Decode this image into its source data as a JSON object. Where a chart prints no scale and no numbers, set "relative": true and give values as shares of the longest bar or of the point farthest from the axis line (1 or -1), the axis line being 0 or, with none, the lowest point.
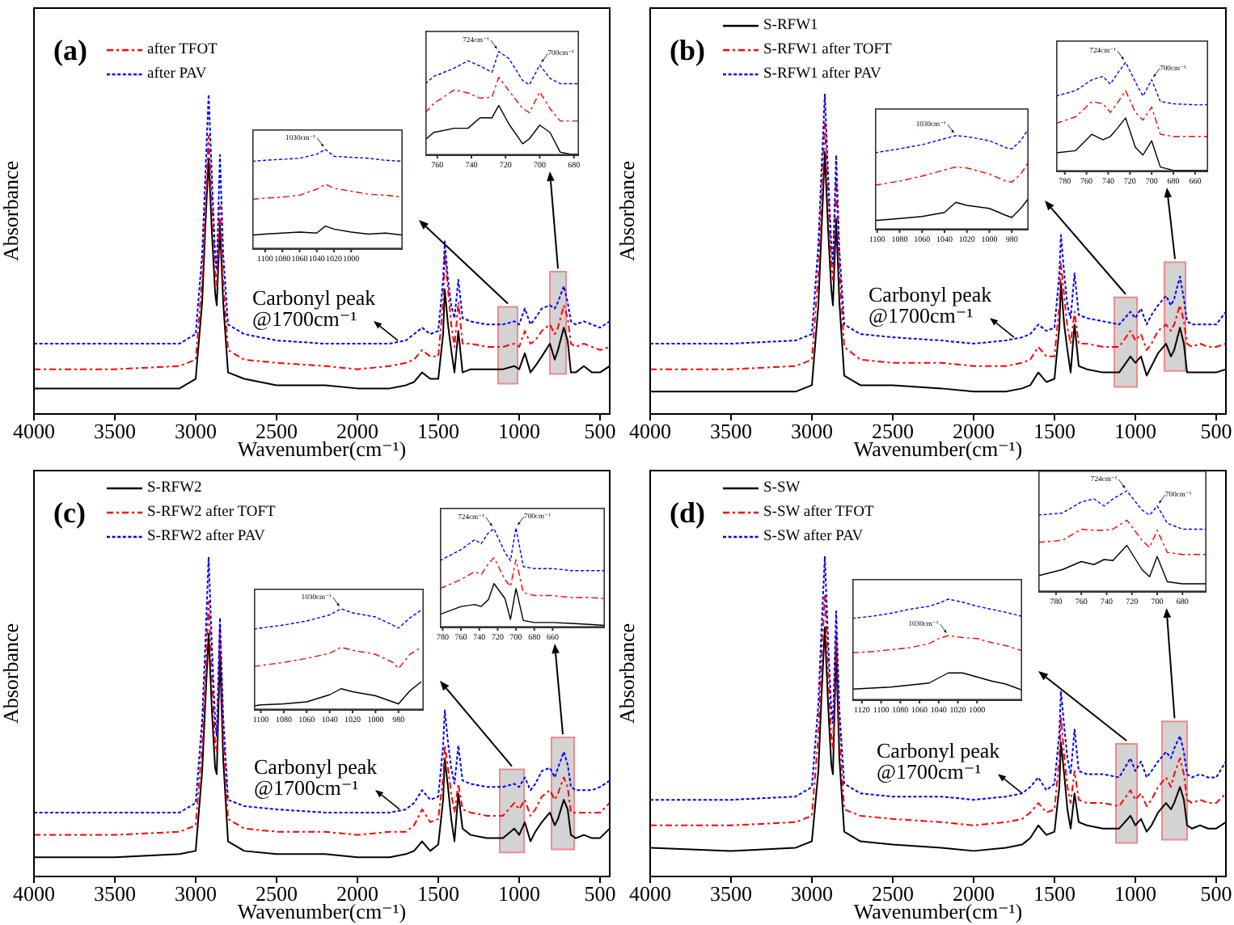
{
  "chart_data": [
    {
      "type": "line",
      "title": "(a)",
      "xlabel": "Wavenumber(cm⁻¹)",
      "ylabel": "Absorbance",
      "relative": true,
      "legend": "top left",
      "x": [
        4000,
        3500,
        3100,
        3000,
        2960,
        2940,
        2920,
        2900,
        2880,
        2870,
        2850,
        2830,
        2800,
        2700,
        2500,
        2200,
        2000,
        1800,
        1700,
        1650,
        1600,
        1550,
        1500,
        1470,
        1460,
        1440,
        1420,
        1400,
        1376,
        1350,
        1300,
        1200,
        1100,
        1030,
        1000,
        965,
        930,
        900,
        860,
        810,
        780,
        760,
        724,
        700,
        680,
        650,
        600,
        550,
        500,
        440
      ],
      "xlim": [
        4000,
        440
      ],
      "xticks": [
        4000,
        3500,
        3000,
        2500,
        2000,
        1500,
        1000,
        500
      ],
      "series": [
        {
          "color": "#000000",
          "line_style": "solid",
          "values": [
            0.08,
            0.08,
            0.08,
            0.11,
            0.35,
            0.59,
            0.8,
            0.57,
            0.38,
            0.34,
            0.59,
            0.35,
            0.13,
            0.11,
            0.09,
            0.09,
            0.08,
            0.08,
            0.09,
            0.1,
            0.13,
            0.11,
            0.11,
            0.25,
            0.39,
            0.28,
            0.2,
            0.13,
            0.26,
            0.13,
            0.14,
            0.14,
            0.14,
            0.15,
            0.14,
            0.19,
            0.13,
            0.15,
            0.18,
            0.22,
            0.17,
            0.2,
            0.27,
            0.23,
            0.13,
            0.13,
            0.15,
            0.13,
            0.13,
            0.15
          ]
        },
        {
          "name": "after TFOT",
          "color": "#ff0000",
          "line_style": "dashed",
          "values": [
            0.14,
            0.14,
            0.15,
            0.17,
            0.42,
            0.65,
            0.87,
            0.65,
            0.45,
            0.4,
            0.65,
            0.42,
            0.2,
            0.17,
            0.16,
            0.15,
            0.14,
            0.15,
            0.16,
            0.17,
            0.2,
            0.18,
            0.18,
            0.35,
            0.5,
            0.39,
            0.28,
            0.21,
            0.35,
            0.22,
            0.22,
            0.21,
            0.21,
            0.22,
            0.21,
            0.26,
            0.22,
            0.23,
            0.26,
            0.28,
            0.25,
            0.27,
            0.34,
            0.3,
            0.22,
            0.21,
            0.22,
            0.21,
            0.2,
            0.21
          ]
        },
        {
          "name": "after PAV",
          "color": "#0000ff",
          "line_style": "dotted",
          "values": [
            0.22,
            0.22,
            0.22,
            0.25,
            0.5,
            0.75,
            1,
            0.74,
            0.5,
            0.45,
            0.81,
            0.5,
            0.28,
            0.25,
            0.23,
            0.22,
            0.22,
            0.22,
            0.23,
            0.25,
            0.27,
            0.25,
            0.26,
            0.42,
            0.54,
            0.42,
            0.34,
            0.3,
            0.42,
            0.3,
            0.29,
            0.28,
            0.28,
            0.29,
            0.28,
            0.33,
            0.28,
            0.3,
            0.33,
            0.34,
            0.33,
            0.35,
            0.4,
            0.35,
            0.29,
            0.28,
            0.29,
            0.28,
            0.27,
            0.29
          ]
        }
      ],
      "bands": [
        {
          "axis": "x",
          "from": 1130,
          "to": 1010,
          "color": "#c8c8c8"
        },
        {
          "axis": "x",
          "from": 810,
          "to": 710,
          "color": "#c8c8c8"
        }
      ],
      "annotations": [
        {
          "text": "Carbonyl peak\n@1700cm⁻¹",
          "x": 1750,
          "y": 0.23
        }
      ]
    },
    {
      "type": "line",
      "relative": true,
      "x": [
        1115,
        1100,
        1080,
        1060,
        1040,
        1030,
        1020,
        1000,
        980,
        960,
        940
      ],
      "xlim": [
        1115,
        940
      ],
      "xticks": [
        1100,
        1080,
        1060,
        1040,
        1020,
        1000
      ],
      "series": [
        {
          "color": "#000000",
          "line_style": "solid",
          "values": [
            0.14,
            0.15,
            0.16,
            0.17,
            0.16,
            0.23,
            0.2,
            0.17,
            0.15,
            0.16,
            0.14
          ]
        },
        {
          "color": "#ff0000",
          "line_style": "dashed",
          "values": [
            0.5,
            0.51,
            0.52,
            0.54,
            0.6,
            0.65,
            0.61,
            0.58,
            0.55,
            0.54,
            0.52
          ]
        },
        {
          "color": "#0000ff",
          "line_style": "dotted",
          "values": [
            0.88,
            0.89,
            0.9,
            0.91,
            0.95,
            1,
            0.93,
            0.92,
            0.91,
            0.89,
            0.88
          ]
        }
      ],
      "annotations": [
        {
          "text": "1030cm⁻¹",
          "x": 1030,
          "y": 1
        }
      ]
    },
    {
      "type": "line",
      "relative": true,
      "x": [
        767,
        762,
        750,
        742,
        735,
        728,
        724,
        718,
        710,
        706,
        700,
        694,
        688,
        682,
        677
      ],
      "xlim": [
        767,
        677
      ],
      "xticks": [
        760,
        740,
        720,
        700,
        680
      ],
      "series": [
        {
          "color": "#000000",
          "line_style": "solid",
          "values": [
            0.15,
            0.22,
            0.26,
            0.26,
            0.36,
            0.36,
            0.48,
            0.3,
            0.11,
            0.16,
            0.29,
            0.22,
            0.03,
            0.01,
            0.01
          ]
        },
        {
          "color": "#ff0000",
          "line_style": "dashed",
          "values": [
            0.41,
            0.5,
            0.63,
            0.6,
            0.55,
            0.56,
            0.75,
            0.62,
            0.45,
            0.41,
            0.61,
            0.45,
            0.33,
            0.33,
            0.33
          ]
        },
        {
          "color": "#0000ff",
          "line_style": "dotted",
          "values": [
            0.69,
            0.76,
            0.84,
            0.91,
            0.86,
            0.8,
            1,
            0.93,
            0.72,
            0.68,
            0.87,
            0.74,
            0.69,
            0.69,
            0.69
          ]
        }
      ],
      "annotations": [
        {
          "text": "724cm⁻¹",
          "x": 724,
          "y": 1
        },
        {
          "text": "700cm⁻¹",
          "x": 700,
          "y": 0.87
        }
      ]
    },
    {
      "type": "line",
      "title": "(b)",
      "xlabel": "Wavenumber(cm⁻¹)",
      "ylabel": "Absorbance",
      "relative": true,
      "legend": "top left",
      "x": [
        4000,
        3500,
        3100,
        3000,
        2960,
        2940,
        2920,
        2900,
        2880,
        2870,
        2850,
        2830,
        2800,
        2700,
        2500,
        2200,
        2000,
        1800,
        1700,
        1650,
        1600,
        1550,
        1500,
        1470,
        1460,
        1440,
        1420,
        1400,
        1376,
        1350,
        1300,
        1200,
        1100,
        1030,
        1000,
        965,
        930,
        900,
        860,
        810,
        780,
        760,
        724,
        700,
        680,
        650,
        600,
        550,
        500,
        440
      ],
      "xlim": [
        4000,
        440
      ],
      "xticks": [
        4000,
        3500,
        3000,
        2500,
        2000,
        1500,
        1000,
        500
      ],
      "series": [
        {
          "name": "S-RFW1",
          "color": "#000000",
          "line_style": "solid",
          "values": [
            0.07,
            0.07,
            0.07,
            0.09,
            0.34,
            0.58,
            0.82,
            0.58,
            0.39,
            0.34,
            0.61,
            0.35,
            0.12,
            0.09,
            0.09,
            0.08,
            0.07,
            0.07,
            0.08,
            0.09,
            0.13,
            0.1,
            0.11,
            0.27,
            0.41,
            0.28,
            0.2,
            0.13,
            0.28,
            0.15,
            0.14,
            0.13,
            0.13,
            0.18,
            0.16,
            0.18,
            0.12,
            0.15,
            0.19,
            0.22,
            0.18,
            0.2,
            0.27,
            0.22,
            0.13,
            0.13,
            0.13,
            0.13,
            0.13,
            0.14
          ]
        },
        {
          "name": "S-RFW1 after TOFT",
          "color": "#ff0000",
          "line_style": "dashed",
          "values": [
            0.14,
            0.14,
            0.15,
            0.17,
            0.44,
            0.68,
            0.91,
            0.68,
            0.47,
            0.42,
            0.73,
            0.45,
            0.21,
            0.17,
            0.16,
            0.16,
            0.15,
            0.15,
            0.16,
            0.17,
            0.21,
            0.18,
            0.18,
            0.34,
            0.47,
            0.37,
            0.27,
            0.22,
            0.32,
            0.22,
            0.22,
            0.21,
            0.21,
            0.26,
            0.23,
            0.25,
            0.2,
            0.22,
            0.26,
            0.28,
            0.26,
            0.28,
            0.34,
            0.29,
            0.22,
            0.21,
            0.22,
            0.21,
            0.21,
            0.22
          ]
        },
        {
          "name": "S-RFW1 after PAV",
          "color": "#0000ff",
          "line_style": "dotted",
          "values": [
            0.22,
            0.22,
            0.23,
            0.25,
            0.53,
            0.77,
            1,
            0.75,
            0.53,
            0.47,
            0.81,
            0.51,
            0.28,
            0.25,
            0.24,
            0.23,
            0.22,
            0.23,
            0.24,
            0.25,
            0.28,
            0.26,
            0.27,
            0.44,
            0.56,
            0.44,
            0.34,
            0.3,
            0.44,
            0.31,
            0.3,
            0.29,
            0.28,
            0.32,
            0.3,
            0.33,
            0.28,
            0.31,
            0.34,
            0.37,
            0.34,
            0.36,
            0.43,
            0.36,
            0.29,
            0.28,
            0.28,
            0.28,
            0.28,
            0.32
          ]
        }
      ],
      "bands": [
        {
          "axis": "x",
          "from": 1130,
          "to": 990,
          "color": "#c8c8c8"
        },
        {
          "axis": "x",
          "from": 820,
          "to": 690,
          "color": "#c8c8c8"
        }
      ],
      "annotations": [
        {
          "text": "Carbonyl peak\n@1700cm⁻¹",
          "x": 1750,
          "y": 0.24
        }
      ]
    },
    {
      "type": "line",
      "relative": true,
      "x": [
        1102,
        1080,
        1060,
        1040,
        1030,
        1020,
        1000,
        985,
        980,
        972,
        965
      ],
      "xlim": [
        1102,
        965
      ],
      "xticks": [
        1100,
        1080,
        1060,
        1040,
        1020,
        1000,
        980
      ],
      "series": [
        {
          "color": "#000000",
          "line_style": "solid",
          "values": [
            0.09,
            0.11,
            0.13,
            0.17,
            0.27,
            0.24,
            0.21,
            0.14,
            0.12,
            0.21,
            0.31
          ]
        },
        {
          "color": "#ff0000",
          "line_style": "dashed",
          "values": [
            0.44,
            0.48,
            0.53,
            0.59,
            0.62,
            0.61,
            0.55,
            0.48,
            0.47,
            0.55,
            0.67
          ]
        },
        {
          "color": "#0000ff",
          "line_style": "dotted",
          "values": [
            0.76,
            0.8,
            0.84,
            0.9,
            0.93,
            0.92,
            0.88,
            0.81,
            0.8,
            0.88,
            1
          ]
        }
      ],
      "annotations": [
        {
          "text": "1030cm⁻¹",
          "x": 1030,
          "y": 0.93
        }
      ]
    },
    {
      "type": "line",
      "relative": true,
      "x": [
        788,
        770,
        755,
        745,
        738,
        732,
        724,
        715,
        708,
        700,
        692,
        680,
        660,
        648
      ],
      "xlim": [
        788,
        648
      ],
      "xticks": [
        780,
        760,
        740,
        720,
        700,
        680,
        660
      ],
      "series": [
        {
          "color": "#000000",
          "line_style": "solid",
          "values": [
            0.17,
            0.19,
            0.34,
            0.29,
            0.32,
            0.39,
            0.49,
            0.22,
            0.15,
            0.28,
            0.04,
            0.01,
            0.01,
            0.01
          ]
        },
        {
          "color": "#ff0000",
          "line_style": "dashed",
          "values": [
            0.44,
            0.5,
            0.64,
            0.62,
            0.54,
            0.62,
            0.74,
            0.54,
            0.47,
            0.59,
            0.34,
            0.32,
            0.32,
            0.32
          ]
        },
        {
          "color": "#0000ff",
          "line_style": "dotted",
          "values": [
            0.69,
            0.74,
            0.84,
            0.87,
            0.8,
            0.89,
            1,
            0.82,
            0.69,
            0.84,
            0.64,
            0.62,
            0.61,
            0.61
          ]
        }
      ],
      "annotations": [
        {
          "text": "724cm⁻¹",
          "x": 724,
          "y": 1
        },
        {
          "text": "700cm⁻¹",
          "x": 700,
          "y": 0.84
        }
      ]
    },
    {
      "type": "line",
      "title": "(c)",
      "xlabel": "Wavenumber(cm⁻¹)",
      "ylabel": "Absorbance",
      "relative": true,
      "legend": "top left",
      "x": [
        4000,
        3500,
        3100,
        3000,
        2960,
        2940,
        2920,
        2900,
        2880,
        2870,
        2850,
        2830,
        2800,
        2700,
        2500,
        2200,
        2000,
        1800,
        1700,
        1650,
        1600,
        1550,
        1500,
        1470,
        1460,
        1440,
        1420,
        1400,
        1376,
        1350,
        1300,
        1200,
        1100,
        1030,
        1000,
        965,
        930,
        900,
        860,
        810,
        780,
        760,
        724,
        700,
        680,
        650,
        600,
        550,
        500,
        440
      ],
      "xlim": [
        4000,
        440
      ],
      "xticks": [
        4000,
        3500,
        3000,
        2500,
        2000,
        1500,
        1000,
        500
      ],
      "series": [
        {
          "name": "S-RFW2",
          "color": "#000000",
          "line_style": "solid",
          "values": [
            0.06,
            0.06,
            0.07,
            0.08,
            0.33,
            0.55,
            0.76,
            0.52,
            0.34,
            0.32,
            0.7,
            0.37,
            0.11,
            0.08,
            0.07,
            0.07,
            0.06,
            0.06,
            0.07,
            0.08,
            0.11,
            0.08,
            0.1,
            0.24,
            0.37,
            0.28,
            0.18,
            0.11,
            0.26,
            0.15,
            0.13,
            0.12,
            0.12,
            0.15,
            0.13,
            0.17,
            0.11,
            0.14,
            0.17,
            0.2,
            0.16,
            0.18,
            0.24,
            0.21,
            0.13,
            0.12,
            0.13,
            0.12,
            0.12,
            0.15
          ]
        },
        {
          "name": "S-RFW2 after TOFT",
          "color": "#ff0000",
          "line_style": "dashed",
          "values": [
            0.13,
            0.13,
            0.14,
            0.16,
            0.41,
            0.63,
            0.86,
            0.62,
            0.42,
            0.39,
            0.78,
            0.44,
            0.18,
            0.15,
            0.14,
            0.14,
            0.13,
            0.14,
            0.14,
            0.16,
            0.21,
            0.17,
            0.18,
            0.31,
            0.41,
            0.34,
            0.26,
            0.2,
            0.29,
            0.21,
            0.2,
            0.19,
            0.19,
            0.23,
            0.21,
            0.24,
            0.19,
            0.21,
            0.25,
            0.27,
            0.24,
            0.26,
            0.31,
            0.28,
            0.2,
            0.2,
            0.2,
            0.2,
            0.2,
            0.23
          ]
        },
        {
          "name": "S-RFW2 after PAV",
          "color": "#0000ff",
          "line_style": "dotted",
          "values": [
            0.2,
            0.2,
            0.2,
            0.23,
            0.49,
            0.73,
            1,
            0.72,
            0.49,
            0.44,
            0.81,
            0.5,
            0.24,
            0.22,
            0.21,
            0.2,
            0.2,
            0.2,
            0.21,
            0.23,
            0.27,
            0.24,
            0.25,
            0.41,
            0.52,
            0.42,
            0.34,
            0.29,
            0.41,
            0.3,
            0.29,
            0.28,
            0.28,
            0.29,
            0.28,
            0.31,
            0.27,
            0.29,
            0.33,
            0.34,
            0.31,
            0.34,
            0.39,
            0.35,
            0.28,
            0.27,
            0.27,
            0.27,
            0.28,
            0.3
          ]
        }
      ],
      "bands": [
        {
          "axis": "x",
          "from": 1120,
          "to": 970,
          "color": "#c8c8c8"
        },
        {
          "axis": "x",
          "from": 800,
          "to": 660,
          "color": "#c8c8c8"
        }
      ],
      "annotations": [
        {
          "text": "Carbonyl peak\n@1700cm⁻¹",
          "x": 1740,
          "y": 0.21
        }
      ]
    },
    {
      "type": "line",
      "relative": true,
      "x": [
        1106,
        1100,
        1080,
        1060,
        1040,
        1030,
        1020,
        1000,
        985,
        980,
        970,
        960
      ],
      "xlim": [
        1106,
        958
      ],
      "xticks": [
        1100,
        1080,
        1060,
        1040,
        1020,
        1000,
        980
      ],
      "series": [
        {
          "color": "#000000",
          "line_style": "solid",
          "values": [
            0.04,
            0.05,
            0.06,
            0.08,
            0.15,
            0.21,
            0.18,
            0.14,
            0.08,
            0.06,
            0.19,
            0.28
          ]
        },
        {
          "color": "#ff0000",
          "line_style": "dashed",
          "values": [
            0.43,
            0.44,
            0.47,
            0.51,
            0.56,
            0.62,
            0.59,
            0.55,
            0.47,
            0.41,
            0.55,
            0.62
          ]
        },
        {
          "color": "#0000ff",
          "line_style": "dotted",
          "values": [
            0.8,
            0.81,
            0.84,
            0.88,
            0.94,
            1,
            0.96,
            0.92,
            0.84,
            0.81,
            0.91,
            0.99
          ]
        }
      ],
      "annotations": [
        {
          "text": "1030cm⁻¹",
          "x": 1030,
          "y": 1
        }
      ]
    },
    {
      "type": "line",
      "relative": true,
      "x": [
        783,
        760,
        745,
        738,
        730,
        724,
        712,
        706,
        700,
        692,
        680,
        660,
        640,
        620,
        603
      ],
      "xlim": [
        783,
        603
      ],
      "xticks": [
        780,
        760,
        740,
        720,
        700,
        680,
        660
      ],
      "series": [
        {
          "color": "#000000",
          "line_style": "solid",
          "values": [
            0.13,
            0.21,
            0.23,
            0.21,
            0.28,
            0.44,
            0.29,
            0.08,
            0.39,
            0.07,
            0.05,
            0.05,
            0.04,
            0.03,
            0.02
          ]
        },
        {
          "color": "#ff0000",
          "line_style": "dashed",
          "values": [
            0.39,
            0.48,
            0.56,
            0.53,
            0.64,
            0.7,
            0.48,
            0.41,
            0.68,
            0.35,
            0.32,
            0.32,
            0.3,
            0.3,
            0.29
          ]
        },
        {
          "color": "#0000ff",
          "line_style": "dotted",
          "values": [
            0.67,
            0.78,
            0.88,
            0.84,
            0.95,
            0.99,
            0.75,
            0.67,
            1,
            0.61,
            0.59,
            0.59,
            0.57,
            0.57,
            0.57
          ]
        }
      ],
      "annotations": [
        {
          "text": "724cm⁻¹",
          "x": 724,
          "y": 0.99
        },
        {
          "text": "700cm⁻¹",
          "x": 700,
          "y": 1
        }
      ]
    },
    {
      "type": "line",
      "title": "(d)",
      "xlabel": "Wavenumber(cm⁻¹)",
      "ylabel": "Absorbance",
      "relative": true,
      "legend": "top left",
      "x": [
        4000,
        3500,
        3100,
        3000,
        2960,
        2940,
        2920,
        2900,
        2880,
        2870,
        2850,
        2830,
        2800,
        2700,
        2500,
        2200,
        2000,
        1800,
        1700,
        1650,
        1600,
        1550,
        1500,
        1470,
        1460,
        1440,
        1420,
        1400,
        1376,
        1350,
        1300,
        1200,
        1100,
        1030,
        1000,
        965,
        930,
        900,
        860,
        810,
        780,
        760,
        724,
        700,
        680,
        650,
        600,
        550,
        500,
        440
      ],
      "xlim": [
        4000,
        440
      ],
      "xticks": [
        4000,
        3500,
        3000,
        2500,
        2000,
        1500,
        1000,
        500
      ],
      "series": [
        {
          "name": "S-SW",
          "color": "#000000",
          "line_style": "solid",
          "values": [
            0.09,
            0.08,
            0.09,
            0.11,
            0.33,
            0.57,
            0.78,
            0.54,
            0.35,
            0.32,
            0.71,
            0.37,
            0.14,
            0.11,
            0.1,
            0.09,
            0.08,
            0.09,
            0.1,
            0.12,
            0.16,
            0.13,
            0.14,
            0.28,
            0.42,
            0.32,
            0.21,
            0.15,
            0.26,
            0.17,
            0.16,
            0.15,
            0.15,
            0.19,
            0.16,
            0.18,
            0.14,
            0.16,
            0.2,
            0.23,
            0.21,
            0.23,
            0.28,
            0.24,
            0.16,
            0.15,
            0.16,
            0.15,
            0.15,
            0.17
          ]
        },
        {
          "name": "S-SW after TFOT",
          "color": "#ff0000",
          "line_style": "dashed",
          "values": [
            0.16,
            0.16,
            0.17,
            0.19,
            0.44,
            0.68,
            0.88,
            0.64,
            0.44,
            0.4,
            0.76,
            0.45,
            0.21,
            0.19,
            0.18,
            0.17,
            0.16,
            0.17,
            0.18,
            0.2,
            0.23,
            0.2,
            0.21,
            0.37,
            0.5,
            0.38,
            0.28,
            0.23,
            0.33,
            0.24,
            0.23,
            0.23,
            0.22,
            0.27,
            0.24,
            0.26,
            0.22,
            0.24,
            0.28,
            0.31,
            0.28,
            0.32,
            0.37,
            0.32,
            0.24,
            0.23,
            0.24,
            0.23,
            0.23,
            0.26
          ]
        },
        {
          "name": "S-SW after PAV",
          "color": "#0000ff",
          "line_style": "dotted",
          "values": [
            0.24,
            0.24,
            0.25,
            0.28,
            0.54,
            0.78,
            1,
            0.74,
            0.52,
            0.48,
            0.83,
            0.52,
            0.29,
            0.26,
            0.25,
            0.25,
            0.24,
            0.25,
            0.26,
            0.28,
            0.31,
            0.27,
            0.29,
            0.45,
            0.58,
            0.47,
            0.37,
            0.32,
            0.46,
            0.33,
            0.32,
            0.32,
            0.31,
            0.37,
            0.33,
            0.36,
            0.31,
            0.33,
            0.36,
            0.39,
            0.37,
            0.4,
            0.44,
            0.39,
            0.32,
            0.31,
            0.32,
            0.31,
            0.31,
            0.36
          ]
        }
      ],
      "bands": [
        {
          "axis": "x",
          "from": 1120,
          "to": 990,
          "color": "#c8c8c8"
        },
        {
          "axis": "x",
          "from": 835,
          "to": 680,
          "color": "#c8c8c8"
        }
      ],
      "annotations": [
        {
          "text": "Carbonyl peak\n@1700cm⁻¹",
          "x": 1700,
          "y": 0.26
        }
      ]
    },
    {
      "type": "line",
      "relative": true,
      "x": [
        1130,
        1110,
        1090,
        1070,
        1050,
        1040,
        1030,
        1015,
        1000,
        985,
        970,
        953
      ],
      "xlim": [
        1130,
        953
      ],
      "xticks": [
        1120,
        1100,
        1080,
        1060,
        1040,
        1020,
        1000
      ],
      "series": [
        {
          "color": "#000000",
          "line_style": "solid",
          "values": [
            0.11,
            0.12,
            0.13,
            0.15,
            0.17,
            0.22,
            0.27,
            0.27,
            0.23,
            0.19,
            0.16,
            0.1
          ]
        },
        {
          "color": "#ff0000",
          "line_style": "dashed",
          "values": [
            0.47,
            0.48,
            0.5,
            0.52,
            0.56,
            0.61,
            0.64,
            0.62,
            0.61,
            0.57,
            0.54,
            0.49
          ]
        },
        {
          "color": "#0000ff",
          "line_style": "dotted",
          "values": [
            0.81,
            0.83,
            0.86,
            0.9,
            0.93,
            0.96,
            1,
            0.97,
            0.93,
            0.9,
            0.87,
            0.83
          ]
        }
      ],
      "annotations": [
        {
          "text": "1030cm⁻¹",
          "x": 1030,
          "y": 0.64
        }
      ]
    },
    {
      "type": "line",
      "relative": true,
      "x": [
        794,
        775,
        760,
        750,
        742,
        735,
        724,
        712,
        706,
        700,
        692,
        680,
        661
      ],
      "xlim": [
        794,
        661
      ],
      "xticks": [
        780,
        760,
        740,
        720,
        700,
        680
      ],
      "series": [
        {
          "color": "#000000",
          "line_style": "solid",
          "values": [
            0.16,
            0.22,
            0.3,
            0.27,
            0.32,
            0.31,
            0.46,
            0.22,
            0.15,
            0.35,
            0.1,
            0.08,
            0.08
          ]
        },
        {
          "color": "#ff0000",
          "line_style": "dashed",
          "values": [
            0.49,
            0.51,
            0.62,
            0.61,
            0.61,
            0.62,
            0.71,
            0.51,
            0.44,
            0.61,
            0.39,
            0.37,
            0.37
          ]
        },
        {
          "color": "#0000ff",
          "line_style": "dotted",
          "values": [
            0.76,
            0.78,
            0.89,
            0.92,
            0.85,
            0.92,
            1,
            0.81,
            0.76,
            0.85,
            0.68,
            0.62,
            0.62
          ]
        }
      ],
      "annotations": [
        {
          "text": "724cm⁻¹",
          "x": 724,
          "y": 1
        },
        {
          "text": "700cm⁻¹",
          "x": 700,
          "y": 0.85
        }
      ]
    }
  ]
}
